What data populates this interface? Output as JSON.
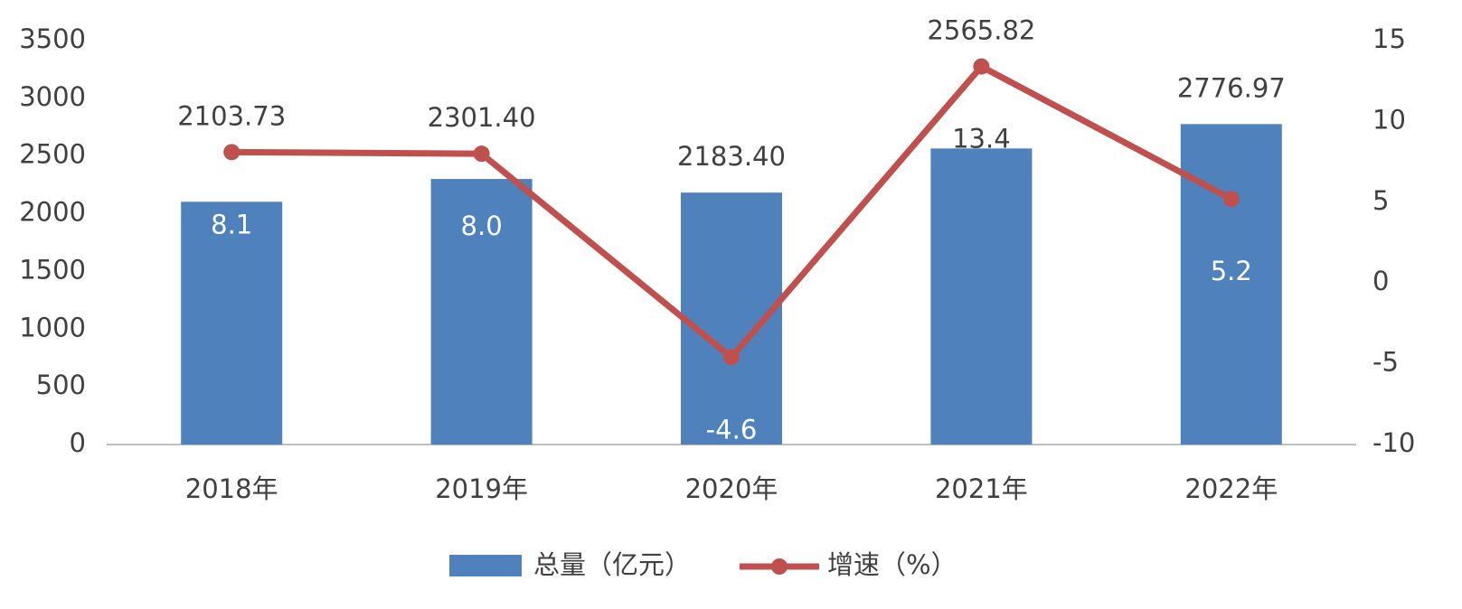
{
  "chart_data": {
    "type": "bar-line",
    "categories": [
      "2018年",
      "2019年",
      "2020年",
      "2021年",
      "2022年"
    ],
    "series": [
      {
        "name": "总量（亿元）",
        "type": "bar",
        "color": "#4f81bd",
        "values": [
          2103.73,
          2301.4,
          2183.4,
          2565.82,
          2776.97
        ],
        "value_labels": [
          "2103.73",
          "2301.40",
          "2183.40",
          "2565.82",
          "2776.97"
        ]
      },
      {
        "name": "增速（%）",
        "type": "line",
        "axis": "y2",
        "color": "#c0504d",
        "values": [
          8.1,
          8.0,
          -4.6,
          13.4,
          5.2
        ],
        "value_labels": [
          "8.1",
          "8.0",
          "-4.6",
          "13.4",
          "5.2"
        ]
      }
    ],
    "ylim": [
      0,
      3500
    ],
    "yticks": [
      0,
      500,
      1000,
      1500,
      2000,
      2500,
      3000,
      3500
    ],
    "y2lim": [
      -10,
      15
    ],
    "y2ticks": [
      -10,
      -5,
      0,
      5,
      10,
      15
    ]
  }
}
